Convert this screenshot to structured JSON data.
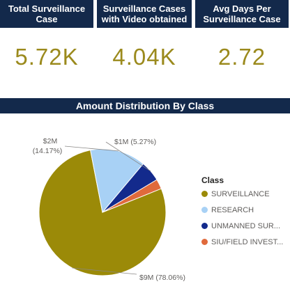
{
  "kpis": [
    {
      "title_line1": "Total Surveillance",
      "title_line2": "Case",
      "value": "5.72K"
    },
    {
      "title_line1": "Surveillance Cases",
      "title_line2": "with Video obtained",
      "value": "4.04K"
    },
    {
      "title_line1": "Avg Days Per",
      "title_line2": "Surveillance Case",
      "value": "2.72"
    }
  ],
  "section_title": "Amount Distribution By Class",
  "chart_data": {
    "type": "pie",
    "title": "Amount Distribution By Class",
    "legend_title": "Class",
    "legend_placement": "right",
    "slices": [
      {
        "name": "SURVEILLANCE",
        "legend_label": "SURVEILLANCE",
        "value": 9,
        "percent": 78.06,
        "label_value": "$9M",
        "label_percent": "(78.06%)",
        "color": "#9b8a08"
      },
      {
        "name": "RESEARCH",
        "legend_label": "RESEARCH",
        "value": 2,
        "percent": 14.17,
        "label_value": "$2M",
        "label_percent": "(14.17%)",
        "color": "#a8d1f5"
      },
      {
        "name": "UNMANNED SUR...",
        "legend_label": "UNMANNED SUR...",
        "value": 1,
        "percent": 5.27,
        "label_value": "$1M",
        "label_percent": "(5.27%)",
        "color": "#132a8c"
      },
      {
        "name": "SIU/FIELD INVEST...",
        "legend_label": "SIU/FIELD INVEST...",
        "value": 0.5,
        "percent": 2.5,
        "label_value": "",
        "label_percent": "",
        "color": "#e06a3c"
      }
    ]
  }
}
